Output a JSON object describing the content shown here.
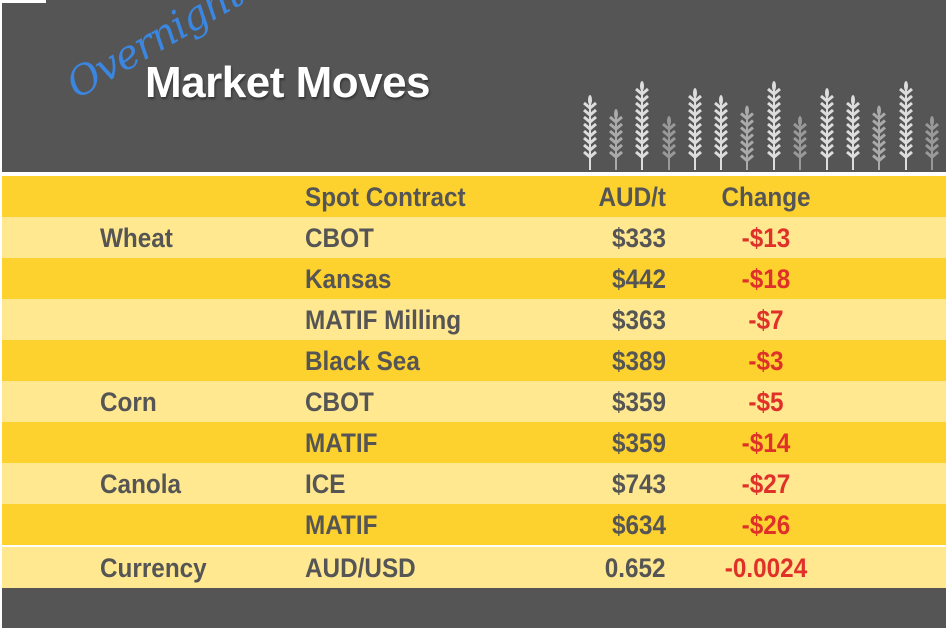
{
  "header": {
    "script_text": "Overnight",
    "title": "Market Moves"
  },
  "colors": {
    "banner": "#555555",
    "row_dark": "#fdd22f",
    "row_light": "#ffe88f",
    "negative": "#e0302a",
    "text": "#555555"
  },
  "table": {
    "columns": [
      "",
      "Spot Contract",
      "AUD/t",
      "Change"
    ],
    "rows": [
      {
        "commodity": "Wheat",
        "contract": "CBOT",
        "price": "$333",
        "change": "-$13"
      },
      {
        "commodity": "",
        "contract": "Kansas",
        "price": "$442",
        "change": "-$18"
      },
      {
        "commodity": "",
        "contract": "MATIF Milling",
        "price": "$363",
        "change": "-$7"
      },
      {
        "commodity": "",
        "contract": "Black Sea",
        "price": "$389",
        "change": "-$3"
      },
      {
        "commodity": "Corn",
        "contract": "CBOT",
        "price": "$359",
        "change": "-$5"
      },
      {
        "commodity": "",
        "contract": "MATIF",
        "price": "$359",
        "change": "-$14"
      },
      {
        "commodity": "Canola",
        "contract": "ICE",
        "price": "$743",
        "change": "-$27"
      },
      {
        "commodity": "",
        "contract": "MATIF",
        "price": "$634",
        "change": "-$26"
      },
      {
        "commodity": "Currency",
        "contract": "AUD/USD",
        "price": "0.652",
        "change": "-0.0024"
      }
    ]
  },
  "icons": {
    "decoration": "wheat-stalks-icon"
  }
}
